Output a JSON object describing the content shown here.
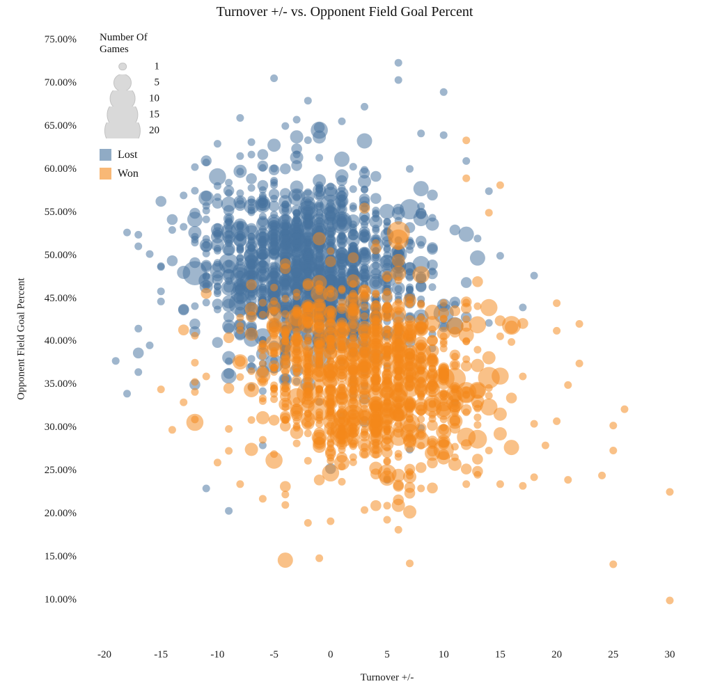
{
  "chart_data": {
    "type": "scatter",
    "title": "Turnover +/- vs. Opponent Field Goal Percent",
    "xlabel": "Turnover +/-",
    "ylabel": "Opponent Field Goal Percent",
    "background": "#ffffff",
    "grid": false,
    "legend_position": "top-left",
    "x_domain": [
      -20,
      30
    ],
    "y_domain": [
      10,
      75
    ],
    "x_ticks": [
      -20,
      -15,
      -10,
      -5,
      0,
      5,
      10,
      15,
      20,
      25,
      30
    ],
    "y_ticks": [
      {
        "v": 75,
        "label": "75.00%"
      },
      {
        "v": 70,
        "label": "70.00%"
      },
      {
        "v": 65,
        "label": "65.00%"
      },
      {
        "v": 60,
        "label": "60.00%"
      },
      {
        "v": 55,
        "label": "55.00%"
      },
      {
        "v": 50,
        "label": "50.00%"
      },
      {
        "v": 45,
        "label": "45.00%"
      },
      {
        "v": 40,
        "label": "40.00%"
      },
      {
        "v": 35,
        "label": "35.00%"
      },
      {
        "v": 30,
        "label": "30.00%"
      },
      {
        "v": 25,
        "label": "25.00%"
      },
      {
        "v": 20,
        "label": "20.00%"
      },
      {
        "v": 15,
        "label": "15.00%"
      },
      {
        "v": 10,
        "label": "10.00%"
      }
    ],
    "size_legend": {
      "title": "Number Of Games",
      "items": [
        1,
        5,
        10,
        15,
        20
      ],
      "bubble_fill": "#d9d9d9",
      "bubble_border": "#c2c2c2"
    },
    "size_scale": {
      "rule": "diameter = base * sqrt(games)",
      "base_diameter": 11
    },
    "seed": 7,
    "series": [
      {
        "name": "Lost",
        "color": "#46739f",
        "opacity": 0.52,
        "cluster": {
          "n": 1250,
          "x_mean": -1.5,
          "x_sd": 5.0,
          "x_min": -19,
          "x_max": 19,
          "y_mean": 48.6,
          "y_sd": 5.3,
          "y_slope": -0.1,
          "y_min": 20,
          "y_max": 72.5,
          "games_scale": 1.5,
          "games_max": 12
        },
        "points": [
          [
            6,
            72.4,
            1
          ],
          [
            6,
            70.4,
            1
          ],
          [
            10,
            69,
            1
          ],
          [
            -5,
            70.6,
            1
          ],
          [
            -2,
            68,
            1
          ],
          [
            3,
            67.3,
            1
          ],
          [
            -8,
            66,
            1
          ],
          [
            1,
            65.6,
            1
          ],
          [
            8,
            64.2,
            1
          ],
          [
            10,
            64,
            1
          ],
          [
            -10,
            63,
            1
          ],
          [
            12,
            61,
            1
          ],
          [
            -12,
            60.3,
            1
          ],
          [
            -13,
            57,
            1
          ],
          [
            -14,
            53,
            1
          ],
          [
            -16,
            50.2,
            1
          ],
          [
            -15,
            48.8,
            1
          ],
          [
            -15,
            44.7,
            1
          ],
          [
            -16,
            39.6,
            1
          ],
          [
            -17,
            36.5,
            1
          ],
          [
            -19,
            37.8,
            1
          ],
          [
            -18,
            34,
            1
          ],
          [
            14,
            57.5,
            1
          ],
          [
            18,
            47.7,
            1
          ],
          [
            17,
            44,
            1
          ],
          [
            15,
            50,
            1
          ],
          [
            13,
            52,
            1
          ],
          [
            0,
            25.3,
            2
          ],
          [
            -9,
            20.4,
            1
          ],
          [
            -11,
            23,
            1
          ],
          [
            5,
            24,
            1
          ],
          [
            7,
            27.5,
            1
          ],
          [
            -6,
            28,
            1
          ],
          [
            8,
            30,
            1
          ],
          [
            11,
            33,
            1
          ]
        ]
      },
      {
        "name": "Won",
        "color": "#f3881a",
        "opacity": 0.52,
        "cluster": {
          "n": 1050,
          "x_mean": 3.0,
          "x_sd": 5.0,
          "x_min": -15,
          "x_max": 27,
          "y_mean": 36.2,
          "y_sd": 5.5,
          "y_slope": -0.15,
          "y_min": 14,
          "y_max": 64,
          "games_scale": 1.5,
          "games_max": 12
        },
        "points": [
          [
            30,
            10,
            1
          ],
          [
            25,
            14.2,
            1
          ],
          [
            7,
            14.3,
            1
          ],
          [
            -1,
            14.9,
            1
          ],
          [
            -2,
            19,
            1
          ],
          [
            0,
            19.2,
            1
          ],
          [
            30,
            22.6,
            1
          ],
          [
            25,
            27.4,
            1
          ],
          [
            26,
            32.2,
            1
          ],
          [
            25,
            30.3,
            1
          ],
          [
            22,
            42.1,
            1
          ],
          [
            20,
            41.3,
            1
          ],
          [
            22,
            37.5,
            1
          ],
          [
            21,
            35,
            1
          ],
          [
            20,
            30.8,
            1
          ],
          [
            18,
            24.3,
            1
          ],
          [
            17,
            23.3,
            1
          ],
          [
            15,
            23.5,
            1
          ],
          [
            12,
            63.4,
            1
          ],
          [
            15,
            58.2,
            1
          ],
          [
            14,
            55,
            1
          ],
          [
            12,
            59,
            1
          ],
          [
            -15,
            34.5,
            1
          ],
          [
            -14,
            29.8,
            1
          ],
          [
            -12,
            37.6,
            1
          ],
          [
            -12,
            31,
            1
          ],
          [
            -10,
            26,
            1
          ],
          [
            -8,
            23.5,
            1
          ],
          [
            -6,
            21.8,
            1
          ],
          [
            -4,
            22.3,
            1
          ],
          [
            3,
            20.5,
            1
          ],
          [
            5,
            21,
            1
          ],
          [
            8,
            23,
            1
          ],
          [
            12,
            23.5,
            1
          ],
          [
            0,
            24.8,
            5
          ],
          [
            16,
            33.5,
            2
          ],
          [
            18,
            30.5,
            1
          ],
          [
            19,
            28,
            1
          ],
          [
            17,
            36,
            1
          ],
          [
            20,
            44.5,
            1
          ],
          [
            13,
            47,
            2
          ],
          [
            16,
            40,
            1
          ],
          [
            24,
            24.5,
            1
          ],
          [
            21,
            24,
            1
          ],
          [
            -9,
            40.5,
            2
          ],
          [
            -11,
            36,
            1
          ],
          [
            -13,
            33,
            1
          ]
        ]
      }
    ]
  }
}
